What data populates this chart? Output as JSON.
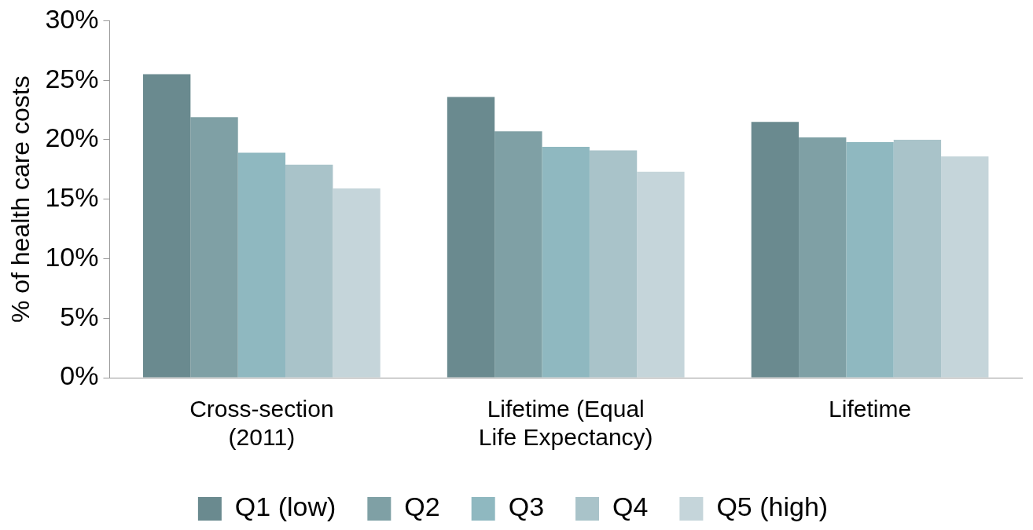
{
  "chart_data": {
    "type": "bar",
    "ylabel": "% of health care costs",
    "categories": [
      "Cross-section (2011)",
      "Lifetime (Equal Life Expectancy)",
      "Lifetime"
    ],
    "series": [
      {
        "name": "Q1 (low)",
        "color": "#6a8a8f",
        "values": [
          25.5,
          23.6,
          21.5
        ]
      },
      {
        "name": "Q2",
        "color": "#7fa0a5",
        "values": [
          21.9,
          20.7,
          20.2
        ]
      },
      {
        "name": "Q3",
        "color": "#8fb8c0",
        "values": [
          18.9,
          19.4,
          19.8
        ]
      },
      {
        "name": "Q4",
        "color": "#a9c3c9",
        "values": [
          17.9,
          19.1,
          20.0
        ]
      },
      {
        "name": "Q5 (high)",
        "color": "#c5d5da",
        "values": [
          15.9,
          17.3,
          18.6
        ]
      }
    ],
    "ylim": [
      0,
      30
    ],
    "yticks": [
      {
        "value": 0,
        "label": "0%"
      },
      {
        "value": 5,
        "label": "5%"
      },
      {
        "value": 10,
        "label": "10%"
      },
      {
        "value": 15,
        "label": "15%"
      },
      {
        "value": 20,
        "label": "20%"
      },
      {
        "value": 25,
        "label": "25%"
      },
      {
        "value": 30,
        "label": "30%"
      }
    ],
    "grid": false,
    "legend": "bottom"
  }
}
